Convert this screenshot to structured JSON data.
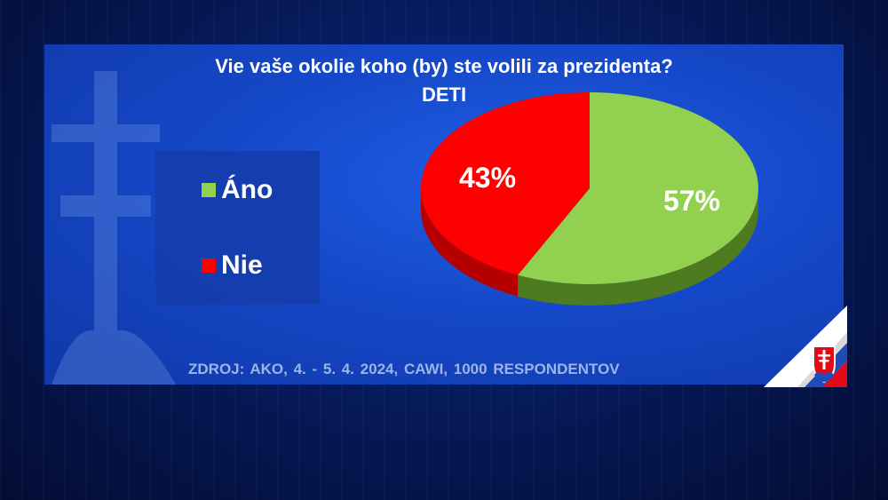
{
  "chart_data": {
    "type": "pie",
    "title": "Vie vaše okolie koho (by) ste volili za prezidenta?",
    "subtitle": "DETI",
    "categories": [
      "Áno",
      "Nie"
    ],
    "values": [
      57,
      43
    ],
    "labels": [
      "57%",
      "43%"
    ],
    "colors": [
      "#92d050",
      "#ff0000"
    ],
    "side_colors": [
      "#4e7a20",
      "#b50000"
    ],
    "legend_position": "left",
    "source": "ZDROJ:    AKO,  4. - 5. 4. 2024,  CAWI,  1000 RESPONDENTOV"
  },
  "icons": [
    "slovak-cross-watermark-icon",
    "slovak-flag-emblem-icon"
  ]
}
